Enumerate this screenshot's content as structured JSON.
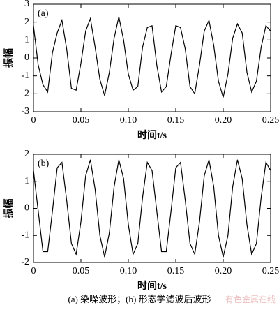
{
  "chart_data": [
    {
      "type": "line",
      "annotation": "(a)",
      "x_label": "时间t/s",
      "y_label": "振幅",
      "x": [
        0,
        0.005,
        0.01,
        0.015,
        0.02,
        0.025,
        0.03,
        0.035,
        0.04,
        0.045,
        0.05,
        0.055,
        0.06,
        0.065,
        0.07,
        0.075,
        0.08,
        0.085,
        0.09,
        0.095,
        0.1,
        0.105,
        0.11,
        0.115,
        0.12,
        0.125,
        0.13,
        0.135,
        0.14,
        0.145,
        0.15,
        0.155,
        0.16,
        0.165,
        0.17,
        0.175,
        0.18,
        0.185,
        0.19,
        0.195,
        0.2,
        0.205,
        0.21,
        0.215,
        0.22,
        0.225,
        0.23,
        0.235,
        0.24,
        0.245,
        0.25
      ],
      "series": [
        {
          "color": "#000000",
          "values": [
            1.8,
            -0.4,
            -1.5,
            -1.9,
            0.3,
            1.4,
            2.1,
            0.5,
            -1.7,
            -1.8,
            -0.3,
            1.5,
            2.2,
            0.6,
            -1.2,
            -2.1,
            -0.8,
            1.1,
            2.3,
            1.0,
            -0.9,
            -1.8,
            -1.6,
            0.6,
            1.7,
            1.8,
            -0.4,
            -1.9,
            -1.6,
            0.2,
            1.8,
            1.7,
            0.5,
            -1.6,
            -2.0,
            -0.4,
            1.5,
            2.1,
            0.7,
            -1.3,
            -2.2,
            -0.9,
            1.1,
            1.9,
            1.4,
            -0.8,
            -1.9,
            -1.3,
            0.6,
            1.8,
            1.5
          ]
        }
      ],
      "xlim": [
        0,
        0.25
      ],
      "xticks": [
        0,
        0.05,
        {
          "value": 0.1,
          "label": "0.10"
        },
        0.15,
        {
          "value": 0.2,
          "label": "0.20"
        },
        0.25
      ],
      "ylim": [
        -3,
        3
      ],
      "yticks": [
        -3,
        -2,
        -1,
        0,
        1,
        2,
        3
      ]
    },
    {
      "type": "line",
      "annotation": "(b)",
      "x_label": "时间t/s",
      "y_label": "振幅",
      "x": [
        0,
        0.005,
        0.01,
        0.015,
        0.02,
        0.025,
        0.03,
        0.035,
        0.04,
        0.045,
        0.05,
        0.055,
        0.06,
        0.065,
        0.07,
        0.075,
        0.08,
        0.085,
        0.09,
        0.095,
        0.1,
        0.105,
        0.11,
        0.115,
        0.12,
        0.125,
        0.13,
        0.135,
        0.14,
        0.145,
        0.15,
        0.155,
        0.16,
        0.165,
        0.17,
        0.175,
        0.18,
        0.185,
        0.19,
        0.195,
        0.2,
        0.205,
        0.21,
        0.215,
        0.22,
        0.225,
        0.23,
        0.235,
        0.24,
        0.245,
        0.25
      ],
      "series": [
        {
          "color": "#000000",
          "values": [
            1.4,
            -0.1,
            -1.6,
            -1.6,
            -0.1,
            1.5,
            1.7,
            0.3,
            -1.3,
            -1.7,
            -0.5,
            1.2,
            1.8,
            0.7,
            -1.0,
            -1.8,
            -0.9,
            0.8,
            1.8,
            1.1,
            -0.6,
            -1.7,
            -1.3,
            0.4,
            1.7,
            1.4,
            -0.1,
            -1.6,
            -1.6,
            -0.1,
            1.5,
            1.7,
            0.3,
            -1.3,
            -1.7,
            -0.5,
            1.2,
            1.8,
            0.8,
            -1.0,
            -1.8,
            -1.0,
            0.8,
            1.8,
            1.1,
            -0.6,
            -1.7,
            -1.3,
            0.4,
            1.7,
            1.4
          ]
        }
      ],
      "xlim": [
        0,
        0.25
      ],
      "xticks": [
        0,
        0.05,
        {
          "value": 0.1,
          "label": "0.10"
        },
        0.15,
        {
          "value": 0.2,
          "label": "0.20"
        },
        0.25
      ],
      "ylim": [
        -2,
        2
      ],
      "yticks": [
        -2,
        -1,
        0,
        1,
        2
      ]
    }
  ],
  "caption": "(a) 染噪波形；(b) 形态学滤波后波形",
  "watermark": "有色金属在线"
}
